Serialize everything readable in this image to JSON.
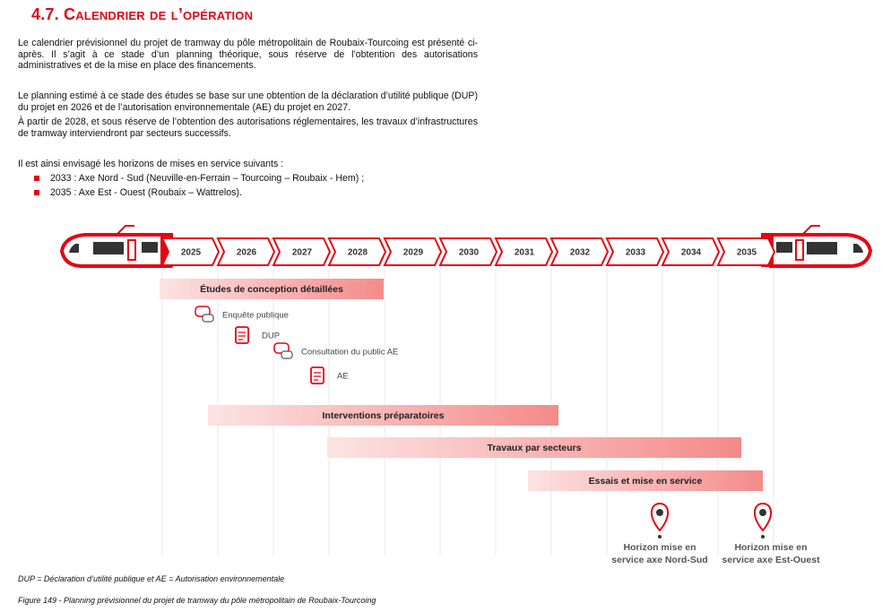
{
  "heading": "4.7. Calendrier de l’opération",
  "paragraphs": [
    "Le calendrier prévisionnel du projet de tramway du pôle métropolitain de Roubaix-Tourcoing est présenté ci-après. Il s’agit à ce stade d’un planning théorique, sous réserve de l’obtention des autorisations administratives et de la mise en place des financements.",
    "Le planning estimé à ce stade des études se base sur une obtention de la déclaration d’utilité publique (DUP) du projet en 2026 et de l’autorisation environnementale (AE) du projet en 2027.",
    "À partir de 2028, et sous réserve de l’obtention des autorisations réglementaires, les travaux d’infrastructures de tramway interviendront par secteurs successifs.",
    "Il est ainsi envisagé les horizons de mises en service suivants :"
  ],
  "bullets": [
    "2033 : Axe Nord - Sud (Neuville-en-Ferrain – Tourcoing – Roubaix - Hem) ;",
    "2035 : Axe Est - Ouest (Roubaix – Wattrelos)."
  ],
  "timeline": {
    "years": [
      "2025",
      "2026",
      "2027",
      "2028",
      "2029",
      "2030",
      "2031",
      "2032",
      "2033",
      "2034",
      "2035"
    ],
    "bars": [
      "Études de conception détaillées",
      "Interventions préparatoires",
      "Travaux par secteurs",
      "Essais  et mise en service"
    ],
    "milestones": [
      "Enquête publique",
      "DUP",
      "Consultation du public AE",
      "AE"
    ],
    "horizons": [
      [
        "Horizon mise en",
        "service axe Nord-Sud"
      ],
      [
        "Horizon mise en",
        "service axe Est-Ouest"
      ]
    ]
  },
  "footnote": "DUP = Déclaration d’utilité publique et AE = Autorisation environnementale",
  "caption": "Figure 149 - Planning prévisionnel du projet de tramway du pôle métropolitain de Roubaix-Tourcoing"
}
